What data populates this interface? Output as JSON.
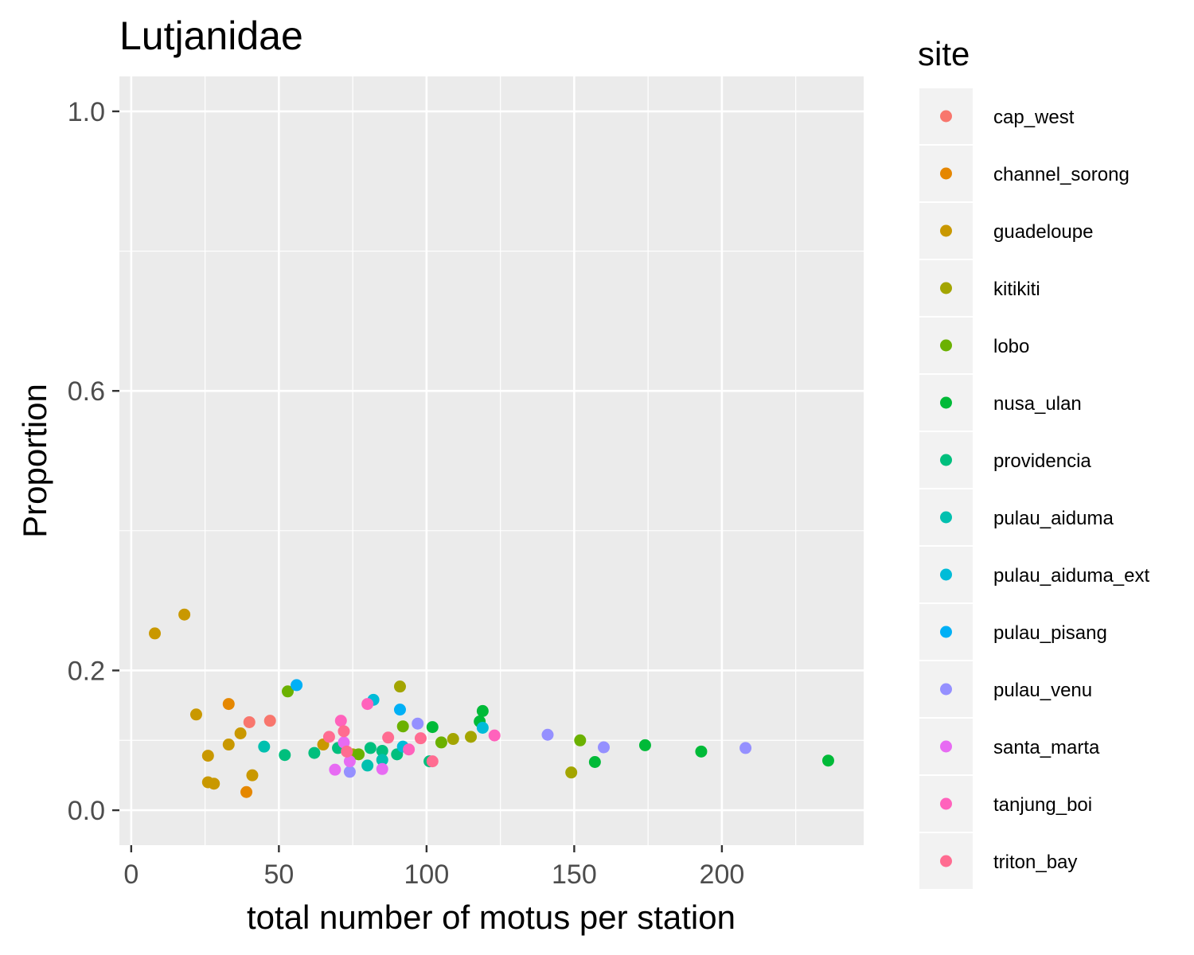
{
  "chart_data": {
    "type": "scatter",
    "title": "Lutjanidae",
    "xlabel": "total number of motus per station",
    "ylabel": "Proportion",
    "xlim": [
      -4,
      248
    ],
    "ylim": [
      -0.05,
      1.05
    ],
    "x_ticks": [
      0,
      50,
      100,
      150,
      200
    ],
    "x_tick_labels": [
      "0",
      "50",
      "100",
      "150",
      "200"
    ],
    "y_ticks": [
      0.0,
      0.2,
      0.6,
      1.0
    ],
    "y_tick_labels": [
      "0.0",
      "0.2",
      "0.6",
      "1.0"
    ],
    "grid": true,
    "legend": {
      "title": "site",
      "position": "right"
    },
    "series": [
      {
        "name": "cap_west",
        "color": "#F8766D",
        "points": [
          [
            40,
            0.126
          ],
          [
            47,
            0.128
          ]
        ]
      },
      {
        "name": "channel_sorong",
        "color": "#E58700",
        "points": [
          [
            33,
            0.152
          ],
          [
            39,
            0.026
          ]
        ]
      },
      {
        "name": "guadeloupe",
        "color": "#C99800",
        "points": [
          [
            8,
            0.253
          ],
          [
            18,
            0.28
          ],
          [
            22,
            0.137
          ],
          [
            26,
            0.078
          ],
          [
            26,
            0.04
          ],
          [
            28,
            0.038
          ],
          [
            33,
            0.094
          ],
          [
            37,
            0.11
          ],
          [
            41,
            0.05
          ],
          [
            65,
            0.094
          ]
        ]
      },
      {
        "name": "kitikiti",
        "color": "#A3A500",
        "points": [
          [
            91,
            0.177
          ],
          [
            109,
            0.102
          ],
          [
            115,
            0.105
          ],
          [
            149,
            0.054
          ],
          [
            75,
            0.08
          ]
        ]
      },
      {
        "name": "lobo",
        "color": "#6BB100",
        "points": [
          [
            53,
            0.17
          ],
          [
            92,
            0.12
          ],
          [
            105,
            0.097
          ],
          [
            152,
            0.1
          ],
          [
            77,
            0.08
          ]
        ]
      },
      {
        "name": "nusa_ulan",
        "color": "#00BA38",
        "points": [
          [
            102,
            0.119
          ],
          [
            118,
            0.127
          ],
          [
            119,
            0.142
          ],
          [
            157,
            0.069
          ],
          [
            174,
            0.093
          ],
          [
            193,
            0.084
          ],
          [
            236,
            0.071
          ]
        ]
      },
      {
        "name": "providencia",
        "color": "#00BF7D",
        "points": [
          [
            52,
            0.079
          ],
          [
            62,
            0.082
          ],
          [
            70,
            0.089
          ],
          [
            81,
            0.089
          ],
          [
            85,
            0.085
          ],
          [
            90,
            0.08
          ],
          [
            101,
            0.07
          ]
        ]
      },
      {
        "name": "pulau_aiduma",
        "color": "#00C0AF",
        "points": [
          [
            45,
            0.091
          ],
          [
            80,
            0.064
          ],
          [
            85,
            0.072
          ]
        ]
      },
      {
        "name": "pulau_aiduma_ext",
        "color": "#00BCD8",
        "points": [
          [
            82,
            0.158
          ],
          [
            92,
            0.091
          ],
          [
            119,
            0.118
          ]
        ]
      },
      {
        "name": "pulau_pisang",
        "color": "#00B0F6",
        "points": [
          [
            56,
            0.179
          ],
          [
            91,
            0.144
          ]
        ]
      },
      {
        "name": "pulau_venu",
        "color": "#9590FF",
        "points": [
          [
            97,
            0.124
          ],
          [
            141,
            0.108
          ],
          [
            160,
            0.09
          ],
          [
            208,
            0.089
          ],
          [
            74,
            0.055
          ]
        ]
      },
      {
        "name": "santa_marta",
        "color": "#E76BF3",
        "points": [
          [
            69,
            0.058
          ],
          [
            72,
            0.097
          ],
          [
            74,
            0.07
          ],
          [
            85,
            0.059
          ]
        ]
      },
      {
        "name": "tanjung_boi",
        "color": "#FF62BC",
        "points": [
          [
            71,
            0.128
          ],
          [
            80,
            0.152
          ],
          [
            123,
            0.107
          ],
          [
            94,
            0.087
          ]
        ]
      },
      {
        "name": "triton_bay",
        "color": "#FF6C91",
        "points": [
          [
            67,
            0.105
          ],
          [
            72,
            0.113
          ],
          [
            73,
            0.084
          ],
          [
            87,
            0.104
          ],
          [
            98,
            0.103
          ],
          [
            102,
            0.07
          ]
        ]
      }
    ]
  }
}
